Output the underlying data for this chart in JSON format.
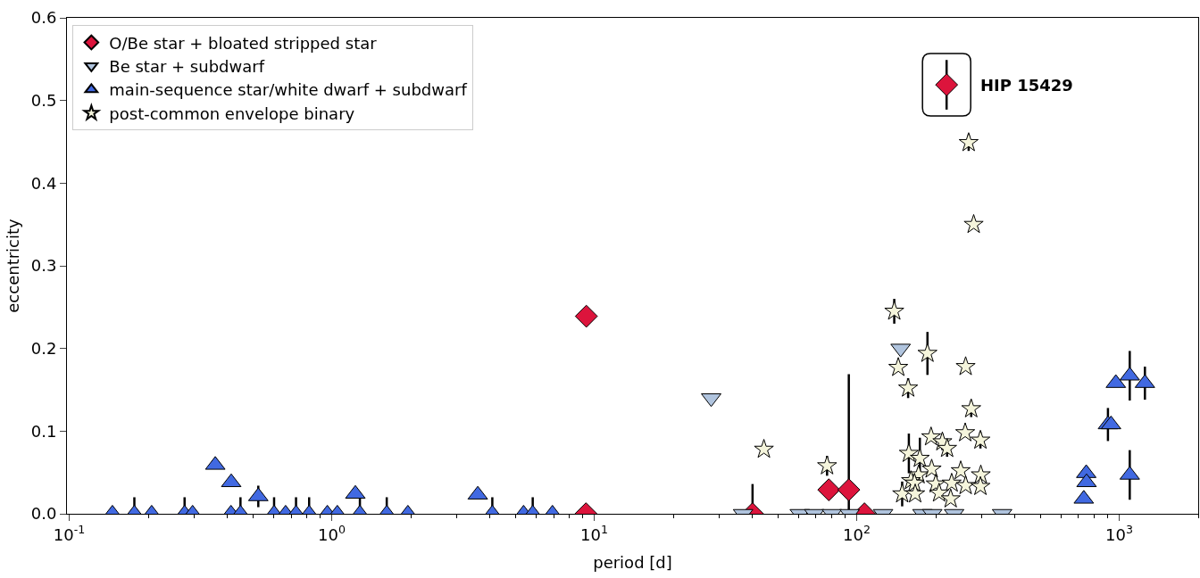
{
  "chart_data": {
    "type": "scatter",
    "xlabel": "period [d]",
    "ylabel": "eccentricity",
    "log": "x",
    "legend": "top left",
    "xlim": [
      0.098,
      2000
    ],
    "ylim": [
      0,
      0.6
    ],
    "xticks": [
      {
        "value": 0.1,
        "label": "10$^{-1}$"
      },
      {
        "value": 0.2,
        "label": null
      },
      {
        "value": 0.3,
        "label": null
      },
      {
        "value": 0.4,
        "label": null
      },
      {
        "value": 0.5,
        "label": null
      },
      {
        "value": 0.6,
        "label": null
      },
      {
        "value": 0.7,
        "label": null
      },
      {
        "value": 0.8,
        "label": null
      },
      {
        "value": 0.9,
        "label": null
      },
      {
        "value": 1,
        "label": "10$^{0}$"
      },
      {
        "value": 2,
        "label": null
      },
      {
        "value": 3,
        "label": null
      },
      {
        "value": 4,
        "label": null
      },
      {
        "value": 5,
        "label": null
      },
      {
        "value": 6,
        "label": null
      },
      {
        "value": 7,
        "label": null
      },
      {
        "value": 8,
        "label": null
      },
      {
        "value": 9,
        "label": null
      },
      {
        "value": 10,
        "label": "10$^{1}$"
      },
      {
        "value": 20,
        "label": null
      },
      {
        "value": 30,
        "label": null
      },
      {
        "value": 40,
        "label": null
      },
      {
        "value": 50,
        "label": null
      },
      {
        "value": 60,
        "label": null
      },
      {
        "value": 70,
        "label": null
      },
      {
        "value": 80,
        "label": null
      },
      {
        "value": 90,
        "label": null
      },
      {
        "value": 100,
        "label": "10$^{2}$"
      },
      {
        "value": 200,
        "label": null
      },
      {
        "value": 300,
        "label": null
      },
      {
        "value": 400,
        "label": null
      },
      {
        "value": 500,
        "label": null
      },
      {
        "value": 600,
        "label": null
      },
      {
        "value": 700,
        "label": null
      },
      {
        "value": 800,
        "label": null
      },
      {
        "value": 900,
        "label": null
      },
      {
        "value": 1000,
        "label": "10$^{3}$"
      },
      {
        "value": 2000,
        "label": null
      }
    ],
    "yticks": [
      {
        "value": 0,
        "label": "0.0"
      },
      {
        "value": 0.1,
        "label": "0.1"
      },
      {
        "value": 0.2,
        "label": "0.2"
      },
      {
        "value": 0.3,
        "label": "0.3"
      },
      {
        "value": 0.4,
        "label": "0.4"
      },
      {
        "value": 0.5,
        "label": "0.5"
      },
      {
        "value": 0.6,
        "label": "0.6"
      }
    ],
    "annotations": [
      {
        "text": "HIP 15429",
        "x": 220,
        "y": 0.519
      }
    ],
    "series": [
      {
        "name": "O/Be star + bloated stripped star",
        "color": "#dc143c",
        "marker": "diamond",
        "x": [
          9.33,
          9.3,
          40.1,
          78.3,
          93.3,
          107,
          220
        ],
        "values": [
          0.239,
          0,
          0,
          0.029,
          0.029,
          0,
          0.519
        ],
        "errors": [
          null,
          null,
          0.036,
          null,
          0.14,
          null,
          0.03
        ]
      },
      {
        "name": "Be star + subdwarf",
        "color": "#b0c4de",
        "marker": "triangle-down",
        "x": [
          27.9,
          36.9,
          60.7,
          68.9,
          80.4,
          94.0,
          126,
          147,
          178,
          194,
          235,
          358
        ],
        "values": [
          0.14,
          0,
          0,
          0,
          0,
          0,
          0,
          0.2,
          0,
          0,
          0,
          0
        ],
        "errors": [
          null,
          null,
          null,
          null,
          null,
          null,
          null,
          null,
          null,
          null,
          null,
          null
        ]
      },
      {
        "name": "main-sequence star/white dwarf + subdwarf",
        "color": "#4169e1",
        "marker": "triangle",
        "x": [
          0.146,
          0.177,
          0.206,
          0.275,
          0.295,
          0.36,
          0.413,
          0.414,
          0.449,
          0.525,
          0.603,
          0.667,
          0.731,
          0.82,
          0.962,
          1.05,
          1.23,
          1.28,
          1.62,
          1.95,
          3.6,
          4.09,
          5.38,
          5.83,
          6.93,
          733,
          749,
          751,
          906,
          931,
          971,
          1097,
          1097,
          1253
        ],
        "values": [
          0,
          0,
          0,
          0,
          0,
          0.059,
          0,
          0.038,
          0,
          0.021,
          0,
          0,
          0,
          0,
          0,
          0,
          0.024,
          0,
          0,
          0,
          0.023,
          0,
          0,
          0,
          0,
          0.018,
          0.049,
          0.038,
          0.108,
          0.108,
          0.158,
          0.167,
          0.047,
          0.158
        ],
        "errors": [
          null,
          0.02,
          null,
          0.02,
          null,
          null,
          null,
          null,
          0.02,
          0.013,
          0.02,
          null,
          0.02,
          0.02,
          null,
          null,
          null,
          0.02,
          0.02,
          null,
          null,
          0.02,
          null,
          0.02,
          null,
          null,
          null,
          null,
          0.02,
          null,
          null,
          0.03,
          0.03,
          0.02
        ]
      },
      {
        "name": "post-common envelope binary",
        "color": "#f5f5dc",
        "marker": "star",
        "x": [
          44.3,
          77.1,
          139,
          144,
          157,
          186,
          260,
          273,
          259,
          296,
          192,
          212,
          221,
          158,
          174,
          193,
          172,
          249,
          297,
          161,
          166,
          200,
          230,
          260,
          296,
          206,
          149,
          167,
          228,
          267,
          279
        ],
        "values": [
          0.078,
          0.058,
          0.245,
          0.177,
          0.152,
          0.194,
          0.178,
          0.127,
          0.098,
          0.089,
          0.093,
          0.087,
          0.079,
          0.073,
          0.067,
          0.054,
          0.047,
          0.052,
          0.047,
          0.04,
          0.037,
          0.036,
          0.037,
          0.034,
          0.033,
          0.025,
          0.024,
          0.024,
          0.018,
          0.449,
          0.35
        ],
        "errors": [
          null,
          0.012,
          0.015,
          null,
          0.012,
          0.026,
          null,
          0.01,
          null,
          0.01,
          null,
          0.01,
          0.01,
          0.024,
          0.025,
          null,
          null,
          null,
          null,
          null,
          null,
          null,
          null,
          null,
          null,
          null,
          0.015,
          null,
          null,
          0.01,
          null
        ]
      }
    ]
  }
}
